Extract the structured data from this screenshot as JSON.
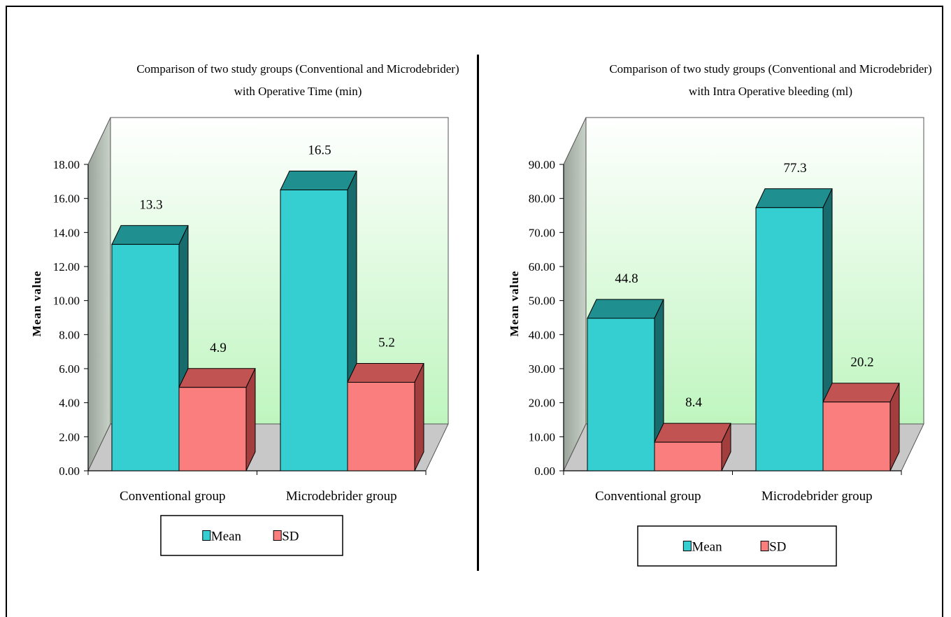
{
  "chart_data": [
    {
      "type": "bar",
      "title": "Comparison of two study groups (Conventional and Microdebrider)",
      "subtitle": "with Operative Time (min)",
      "ylabel": "Mean value",
      "xlabel": "",
      "categories": [
        "Conventional group",
        "Microdebrider group"
      ],
      "series": [
        {
          "name": "Mean",
          "values": [
            13.3,
            16.5
          ],
          "color": "#35cfd2",
          "color_top": "#1f8f8f",
          "color_side": "#176b6c"
        },
        {
          "name": "SD",
          "values": [
            4.9,
            5.2
          ],
          "color": "#fb7e7e",
          "color_top": "#c15353",
          "color_side": "#a23e3e"
        }
      ],
      "data_labels": [
        [
          "13.3",
          "16.5"
        ],
        [
          "4.9",
          "5.2"
        ]
      ],
      "yticks": [
        "0.00",
        "2.00",
        "4.00",
        "6.00",
        "8.00",
        "10.00",
        "12.00",
        "14.00",
        "16.00",
        "18.00"
      ],
      "ylim": [
        0,
        18
      ],
      "grid": false,
      "legend_position": "bottom"
    },
    {
      "type": "bar",
      "title": "Comparison of two study groups (Conventional and Microdebrider)",
      "subtitle": "with Intra Operative bleeding (ml)",
      "ylabel": "Mean value",
      "xlabel": "",
      "categories": [
        "Conventional group",
        "Microdebrider group"
      ],
      "series": [
        {
          "name": "Mean",
          "values": [
            44.8,
            77.3
          ],
          "color": "#35cfd2",
          "color_top": "#1f8f8f",
          "color_side": "#176b6c"
        },
        {
          "name": "SD",
          "values": [
            8.4,
            20.2
          ],
          "color": "#fb7e7e",
          "color_top": "#c15353",
          "color_side": "#a23e3e"
        }
      ],
      "data_labels": [
        [
          "44.8",
          "77.3"
        ],
        [
          "8.4",
          "20.2"
        ]
      ],
      "yticks": [
        "0.00",
        "10.00",
        "20.00",
        "30.00",
        "40.00",
        "50.00",
        "60.00",
        "70.00",
        "80.00",
        "90.00"
      ],
      "ylim": [
        0,
        90
      ],
      "grid": false,
      "legend_position": "bottom"
    }
  ]
}
